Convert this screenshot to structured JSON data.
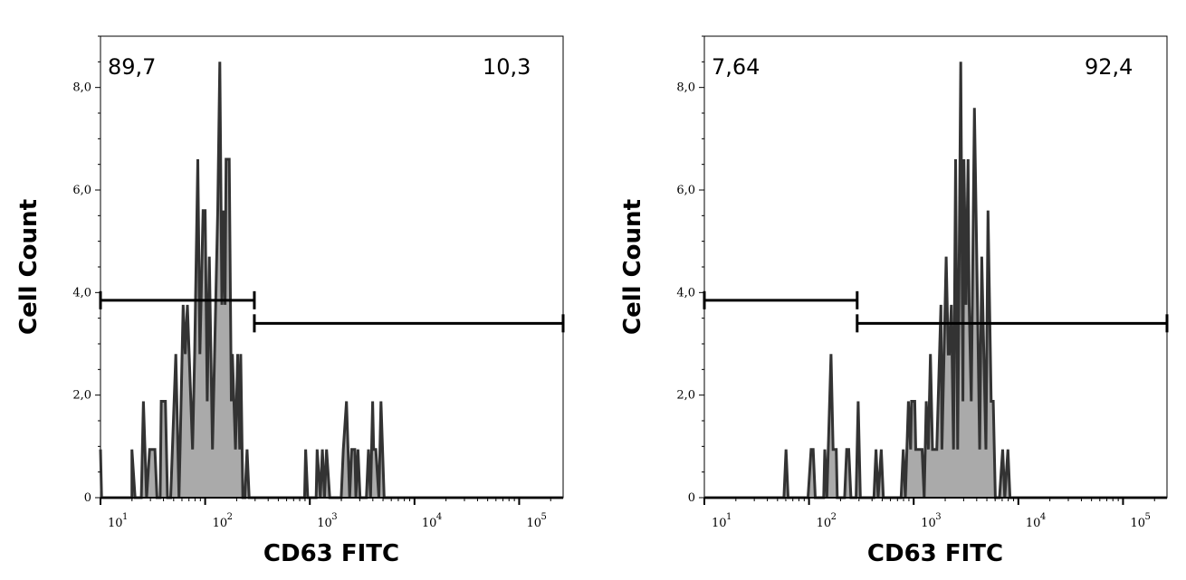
{
  "chart_data": [
    {
      "type": "area",
      "subtype": "histogram",
      "xlabel": "CD63 FITC",
      "ylabel": "Cell Count",
      "xscale": "log",
      "xlim_log10": [
        1.0,
        5.42
      ],
      "ylim": [
        0,
        9.0
      ],
      "y_ticks": [
        {
          "v": 0,
          "label": "0"
        },
        {
          "v": 2,
          "label": "2,0"
        },
        {
          "v": 4,
          "label": "4,0"
        },
        {
          "v": 6,
          "label": "6,0"
        },
        {
          "v": 8,
          "label": "8,0"
        }
      ],
      "x_ticks": [
        {
          "exp": 1,
          "base": "10",
          "sup": "1"
        },
        {
          "exp": 2,
          "base": "10",
          "sup": "2"
        },
        {
          "exp": 3,
          "base": "10",
          "sup": "3"
        },
        {
          "exp": 4,
          "base": "10",
          "sup": "4"
        },
        {
          "exp": 5,
          "base": "10",
          "sup": "5"
        }
      ],
      "gates": [
        {
          "label": "89,7",
          "from_log10": 1.0,
          "to_log10": 2.47,
          "y": 3.85,
          "label_pos": "top-left"
        },
        {
          "label": "10,3",
          "from_log10": 2.47,
          "to_log10": 5.42,
          "y": 3.4,
          "label_pos": "top-right"
        }
      ],
      "points_log10": [
        [
          1.0,
          0.94
        ],
        [
          1.01,
          0
        ],
        [
          1.3,
          0
        ],
        [
          1.3,
          0.94
        ],
        [
          1.33,
          0
        ],
        [
          1.39,
          0
        ],
        [
          1.41,
          1.88
        ],
        [
          1.44,
          0
        ],
        [
          1.47,
          0.94
        ],
        [
          1.52,
          0.94
        ],
        [
          1.54,
          0
        ],
        [
          1.57,
          0
        ],
        [
          1.58,
          1.88
        ],
        [
          1.62,
          1.88
        ],
        [
          1.64,
          0
        ],
        [
          1.67,
          0
        ],
        [
          1.72,
          2.8
        ],
        [
          1.75,
          0
        ],
        [
          1.76,
          0.94
        ],
        [
          1.79,
          3.76
        ],
        [
          1.81,
          2.8
        ],
        [
          1.83,
          3.76
        ],
        [
          1.88,
          0.94
        ],
        [
          1.9,
          2.8
        ],
        [
          1.93,
          6.6
        ],
        [
          1.95,
          2.8
        ],
        [
          1.98,
          5.6
        ],
        [
          2.0,
          5.6
        ],
        [
          2.02,
          1.88
        ],
        [
          2.04,
          4.7
        ],
        [
          2.07,
          0.94
        ],
        [
          2.12,
          5.6
        ],
        [
          2.14,
          8.5
        ],
        [
          2.16,
          3.76
        ],
        [
          2.17,
          5.6
        ],
        [
          2.19,
          3.76
        ],
        [
          2.2,
          6.6
        ],
        [
          2.23,
          6.6
        ],
        [
          2.25,
          1.88
        ],
        [
          2.26,
          2.8
        ],
        [
          2.29,
          0.94
        ],
        [
          2.31,
          2.8
        ],
        [
          2.33,
          0.94
        ],
        [
          2.34,
          2.8
        ],
        [
          2.36,
          0
        ],
        [
          2.38,
          0
        ],
        [
          2.4,
          0.94
        ],
        [
          2.42,
          0
        ],
        [
          2.95,
          0
        ],
        [
          2.96,
          0.94
        ],
        [
          2.98,
          0
        ],
        [
          3.06,
          0
        ],
        [
          3.07,
          0.94
        ],
        [
          3.1,
          0
        ],
        [
          3.12,
          0.94
        ],
        [
          3.14,
          0
        ],
        [
          3.16,
          0.94
        ],
        [
          3.19,
          0
        ],
        [
          3.3,
          0
        ],
        [
          3.32,
          0.94
        ],
        [
          3.35,
          1.88
        ],
        [
          3.38,
          0
        ],
        [
          3.4,
          0.94
        ],
        [
          3.43,
          0.94
        ],
        [
          3.44,
          0
        ],
        [
          3.46,
          0.94
        ],
        [
          3.48,
          0
        ],
        [
          3.54,
          0
        ],
        [
          3.56,
          0.94
        ],
        [
          3.58,
          0
        ],
        [
          3.6,
          1.88
        ],
        [
          3.61,
          0.94
        ],
        [
          3.63,
          0.94
        ],
        [
          3.66,
          0
        ],
        [
          3.68,
          1.88
        ],
        [
          3.71,
          0
        ],
        [
          5.42,
          0
        ]
      ]
    },
    {
      "type": "area",
      "subtype": "histogram",
      "xlabel": "CD63 FITC",
      "ylabel": "Cell Count",
      "xscale": "log",
      "xlim_log10": [
        1.0,
        5.42
      ],
      "ylim": [
        0,
        9.0
      ],
      "y_ticks": [
        {
          "v": 0,
          "label": "0"
        },
        {
          "v": 2,
          "label": "2,0"
        },
        {
          "v": 4,
          "label": "4,0"
        },
        {
          "v": 6,
          "label": "6,0"
        },
        {
          "v": 8,
          "label": "8,0"
        }
      ],
      "x_ticks": [
        {
          "exp": 1,
          "base": "10",
          "sup": "1"
        },
        {
          "exp": 2,
          "base": "10",
          "sup": "2"
        },
        {
          "exp": 3,
          "base": "10",
          "sup": "3"
        },
        {
          "exp": 4,
          "base": "10",
          "sup": "4"
        },
        {
          "exp": 5,
          "base": "10",
          "sup": "5"
        }
      ],
      "gates": [
        {
          "label": "7,64",
          "from_log10": 1.0,
          "to_log10": 2.46,
          "y": 3.85,
          "label_pos": "top-left"
        },
        {
          "label": "92,4",
          "from_log10": 2.46,
          "to_log10": 5.42,
          "y": 3.4,
          "label_pos": "top-right"
        }
      ],
      "points_log10": [
        [
          1.0,
          0
        ],
        [
          1.76,
          0
        ],
        [
          1.78,
          0.94
        ],
        [
          1.8,
          0
        ],
        [
          1.99,
          0
        ],
        [
          2.02,
          0.94
        ],
        [
          2.04,
          0.94
        ],
        [
          2.06,
          0
        ],
        [
          2.14,
          0
        ],
        [
          2.15,
          0.94
        ],
        [
          2.17,
          0
        ],
        [
          2.21,
          2.8
        ],
        [
          2.23,
          0.94
        ],
        [
          2.26,
          0.94
        ],
        [
          2.27,
          0
        ],
        [
          2.34,
          0
        ],
        [
          2.36,
          0.94
        ],
        [
          2.38,
          0.94
        ],
        [
          2.4,
          0
        ],
        [
          2.45,
          0
        ],
        [
          2.47,
          1.88
        ],
        [
          2.49,
          0
        ],
        [
          2.62,
          0
        ],
        [
          2.64,
          0.94
        ],
        [
          2.66,
          0
        ],
        [
          2.69,
          0.94
        ],
        [
          2.71,
          0
        ],
        [
          2.88,
          0
        ],
        [
          2.9,
          0.94
        ],
        [
          2.92,
          0
        ],
        [
          2.95,
          1.88
        ],
        [
          2.97,
          0.94
        ],
        [
          2.98,
          1.88
        ],
        [
          3.01,
          1.88
        ],
        [
          3.02,
          0.94
        ],
        [
          3.08,
          0.94
        ],
        [
          3.1,
          0
        ],
        [
          3.12,
          1.88
        ],
        [
          3.14,
          0.94
        ],
        [
          3.16,
          2.8
        ],
        [
          3.18,
          0.94
        ],
        [
          3.2,
          0.94
        ],
        [
          3.22,
          0.94
        ],
        [
          3.26,
          3.76
        ],
        [
          3.27,
          0.94
        ],
        [
          3.31,
          4.7
        ],
        [
          3.33,
          2.8
        ],
        [
          3.34,
          2.8
        ],
        [
          3.36,
          3.76
        ],
        [
          3.38,
          0.94
        ],
        [
          3.4,
          6.6
        ],
        [
          3.42,
          0.94
        ],
        [
          3.45,
          8.5
        ],
        [
          3.47,
          1.88
        ],
        [
          3.48,
          6.6
        ],
        [
          3.5,
          3.76
        ],
        [
          3.52,
          6.6
        ],
        [
          3.53,
          3.76
        ],
        [
          3.55,
          1.88
        ],
        [
          3.58,
          7.6
        ],
        [
          3.61,
          3.76
        ],
        [
          3.63,
          0.94
        ],
        [
          3.65,
          4.7
        ],
        [
          3.67,
          2.8
        ],
        [
          3.69,
          0.94
        ],
        [
          3.71,
          5.6
        ],
        [
          3.74,
          1.88
        ],
        [
          3.76,
          1.88
        ],
        [
          3.78,
          0
        ],
        [
          3.82,
          0
        ],
        [
          3.85,
          0.94
        ],
        [
          3.87,
          0
        ],
        [
          3.9,
          0.94
        ],
        [
          3.92,
          0
        ],
        [
          5.42,
          0
        ]
      ]
    }
  ]
}
